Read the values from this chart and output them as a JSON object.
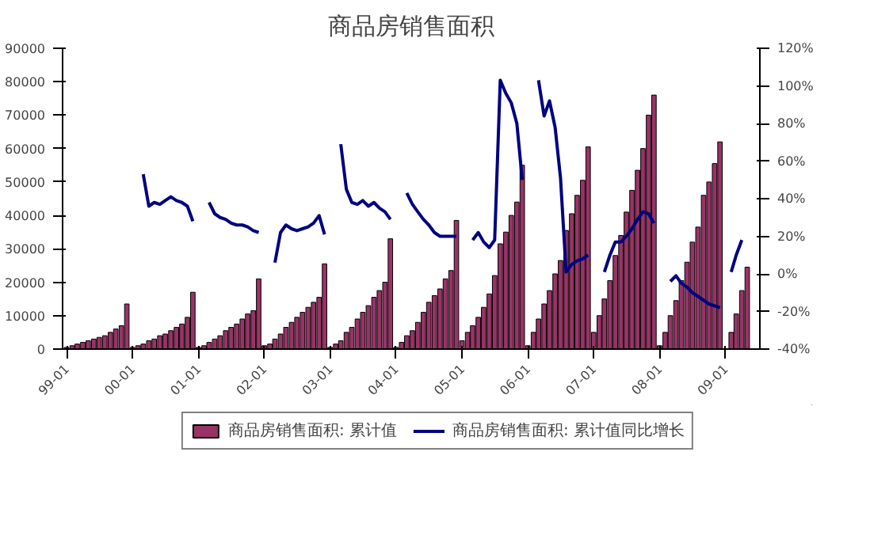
{
  "chart_data": {
    "type": "bar",
    "title": "商品房销售面积",
    "x": [
      "1999-01",
      "1999-02",
      "1999-03",
      "1999-04",
      "1999-05",
      "1999-06",
      "1999-07",
      "1999-08",
      "1999-09",
      "1999-10",
      "1999-11",
      "1999-12",
      "2000-01",
      "2000-02",
      "2000-03",
      "2000-04",
      "2000-05",
      "2000-06",
      "2000-07",
      "2000-08",
      "2000-09",
      "2000-10",
      "2000-11",
      "2000-12",
      "2001-01",
      "2001-02",
      "2001-03",
      "2001-04",
      "2001-05",
      "2001-06",
      "2001-07",
      "2001-08",
      "2001-09",
      "2001-10",
      "2001-11",
      "2001-12",
      "2002-01",
      "2002-02",
      "2002-03",
      "2002-04",
      "2002-05",
      "2002-06",
      "2002-07",
      "2002-08",
      "2002-09",
      "2002-10",
      "2002-11",
      "2002-12",
      "2003-01",
      "2003-02",
      "2003-03",
      "2003-04",
      "2003-05",
      "2003-06",
      "2003-07",
      "2003-08",
      "2003-09",
      "2003-10",
      "2003-11",
      "2003-12",
      "2004-01",
      "2004-02",
      "2004-03",
      "2004-04",
      "2004-05",
      "2004-06",
      "2004-07",
      "2004-08",
      "2004-09",
      "2004-10",
      "2004-11",
      "2004-12",
      "2005-01",
      "2005-02",
      "2005-03",
      "2005-04",
      "2005-05",
      "2005-06",
      "2005-07",
      "2005-08",
      "2005-09",
      "2005-10",
      "2005-11",
      "2005-12",
      "2006-01",
      "2006-02",
      "2006-03",
      "2006-04",
      "2006-05",
      "2006-06",
      "2006-07",
      "2006-08",
      "2006-09",
      "2006-10",
      "2006-11",
      "2006-12",
      "2007-01",
      "2007-02",
      "2007-03",
      "2007-04",
      "2007-05",
      "2007-06",
      "2007-07",
      "2007-08",
      "2007-09",
      "2007-10",
      "2007-11",
      "2007-12",
      "2008-01",
      "2008-02",
      "2008-03",
      "2008-04",
      "2008-05",
      "2008-06",
      "2008-07",
      "2008-08",
      "2008-09",
      "2008-10",
      "2008-11",
      "2008-12",
      "2009-01",
      "2009-02",
      "2009-03",
      "2009-04",
      "2009-05"
    ],
    "series": [
      {
        "name": "商品房销售面积: 累计值",
        "color": "#993366",
        "values": [
          500,
          1000,
          1500,
          2000,
          2500,
          3000,
          3500,
          4000,
          5000,
          6000,
          7000,
          13500,
          500,
          1000,
          1500,
          2500,
          3000,
          4000,
          4500,
          5500,
          6500,
          7500,
          9500,
          17000,
          500,
          1000,
          2000,
          3000,
          4000,
          5500,
          6500,
          7500,
          9000,
          10500,
          11500,
          21000,
          1000,
          1500,
          3000,
          4500,
          6500,
          8000,
          9500,
          11000,
          12500,
          14000,
          15500,
          25500,
          500,
          1500,
          2500,
          5000,
          6500,
          9000,
          11000,
          13000,
          15500,
          17500,
          20000,
          33000,
          500,
          2000,
          4000,
          5500,
          8000,
          11000,
          14000,
          16000,
          18000,
          21000,
          23500,
          38500,
          2500,
          5000,
          7000,
          9500,
          12500,
          16500,
          22000,
          31500,
          35000,
          40000,
          44000,
          55000,
          1000,
          5000,
          9000,
          13500,
          17500,
          22500,
          26500,
          35500,
          40500,
          46000,
          50500,
          60500,
          5000,
          10000,
          15000,
          20500,
          28000,
          34000,
          41000,
          47500,
          53500,
          60000,
          70000,
          76000,
          1000,
          5000,
          10000,
          14500,
          20500,
          26000,
          32000,
          36500,
          46000,
          50000,
          55500,
          62000,
          null,
          5000,
          10500,
          17500,
          24500
        ]
      },
      {
        "name": "商品房销售面积: 累计值同比增长",
        "type": "line",
        "axis": "y2",
        "color": "#000080",
        "values": [
          null,
          null,
          null,
          null,
          null,
          null,
          null,
          null,
          null,
          null,
          null,
          null,
          null,
          null,
          53,
          36,
          38,
          37,
          39,
          41,
          39,
          38,
          36,
          28,
          null,
          null,
          38,
          32,
          30,
          29,
          27,
          26,
          26,
          25,
          23,
          22,
          null,
          null,
          6,
          22,
          26,
          24,
          23,
          24,
          25,
          27,
          31,
          21,
          null,
          null,
          69,
          45,
          38,
          37,
          39,
          36,
          38,
          35,
          33,
          29,
          null,
          null,
          43,
          37,
          33,
          29,
          26,
          22,
          20,
          20,
          20,
          20,
          null,
          null,
          18,
          22,
          17,
          14,
          18,
          103,
          96,
          91,
          80,
          50,
          null,
          null,
          103,
          84,
          92,
          78,
          51,
          1,
          5,
          7,
          8,
          10,
          null,
          null,
          1,
          10,
          17,
          17,
          20,
          24,
          29,
          33,
          32,
          27,
          null,
          null,
          -4,
          -1,
          -5,
          -7,
          -10,
          -12,
          -14,
          -16,
          -17,
          -18,
          null,
          1,
          10,
          18,
          null
        ]
      }
    ],
    "xlim": [
      "1998-12-10",
      "2009-07-10"
    ],
    "xticks": [
      {
        "value": "1999-01",
        "label": "99-01"
      },
      {
        "value": "2000-01",
        "label": "00-01"
      },
      {
        "value": "2001-01",
        "label": "01-01"
      },
      {
        "value": "2002-01",
        "label": "02-01"
      },
      {
        "value": "2003-01",
        "label": "03-01"
      },
      {
        "value": "2004-01",
        "label": "04-01"
      },
      {
        "value": "2005-01",
        "label": "05-01"
      },
      {
        "value": "2006-01",
        "label": "06-01"
      },
      {
        "value": "2007-01",
        "label": "07-01"
      },
      {
        "value": "2008-01",
        "label": "08-01"
      },
      {
        "value": "2009-01",
        "label": "09-01"
      }
    ],
    "ylim": [
      0,
      90000
    ],
    "yticks": [
      0,
      10000,
      20000,
      30000,
      40000,
      50000,
      60000,
      70000,
      80000,
      90000
    ],
    "y2lim": [
      -40,
      120
    ],
    "y2ticks": [
      {
        "value": -40,
        "label": "-40%"
      },
      {
        "value": -20,
        "label": "-20%"
      },
      {
        "value": 0,
        "label": "0%"
      },
      {
        "value": 20,
        "label": "20%"
      },
      {
        "value": 40,
        "label": "40%"
      },
      {
        "value": 60,
        "label": "60%"
      },
      {
        "value": 80,
        "label": "80%"
      },
      {
        "value": 100,
        "label": "100%"
      },
      {
        "value": 120,
        "label": "120%"
      }
    ],
    "legend": "bottom",
    "line_style": "solid",
    "marker": "none"
  }
}
